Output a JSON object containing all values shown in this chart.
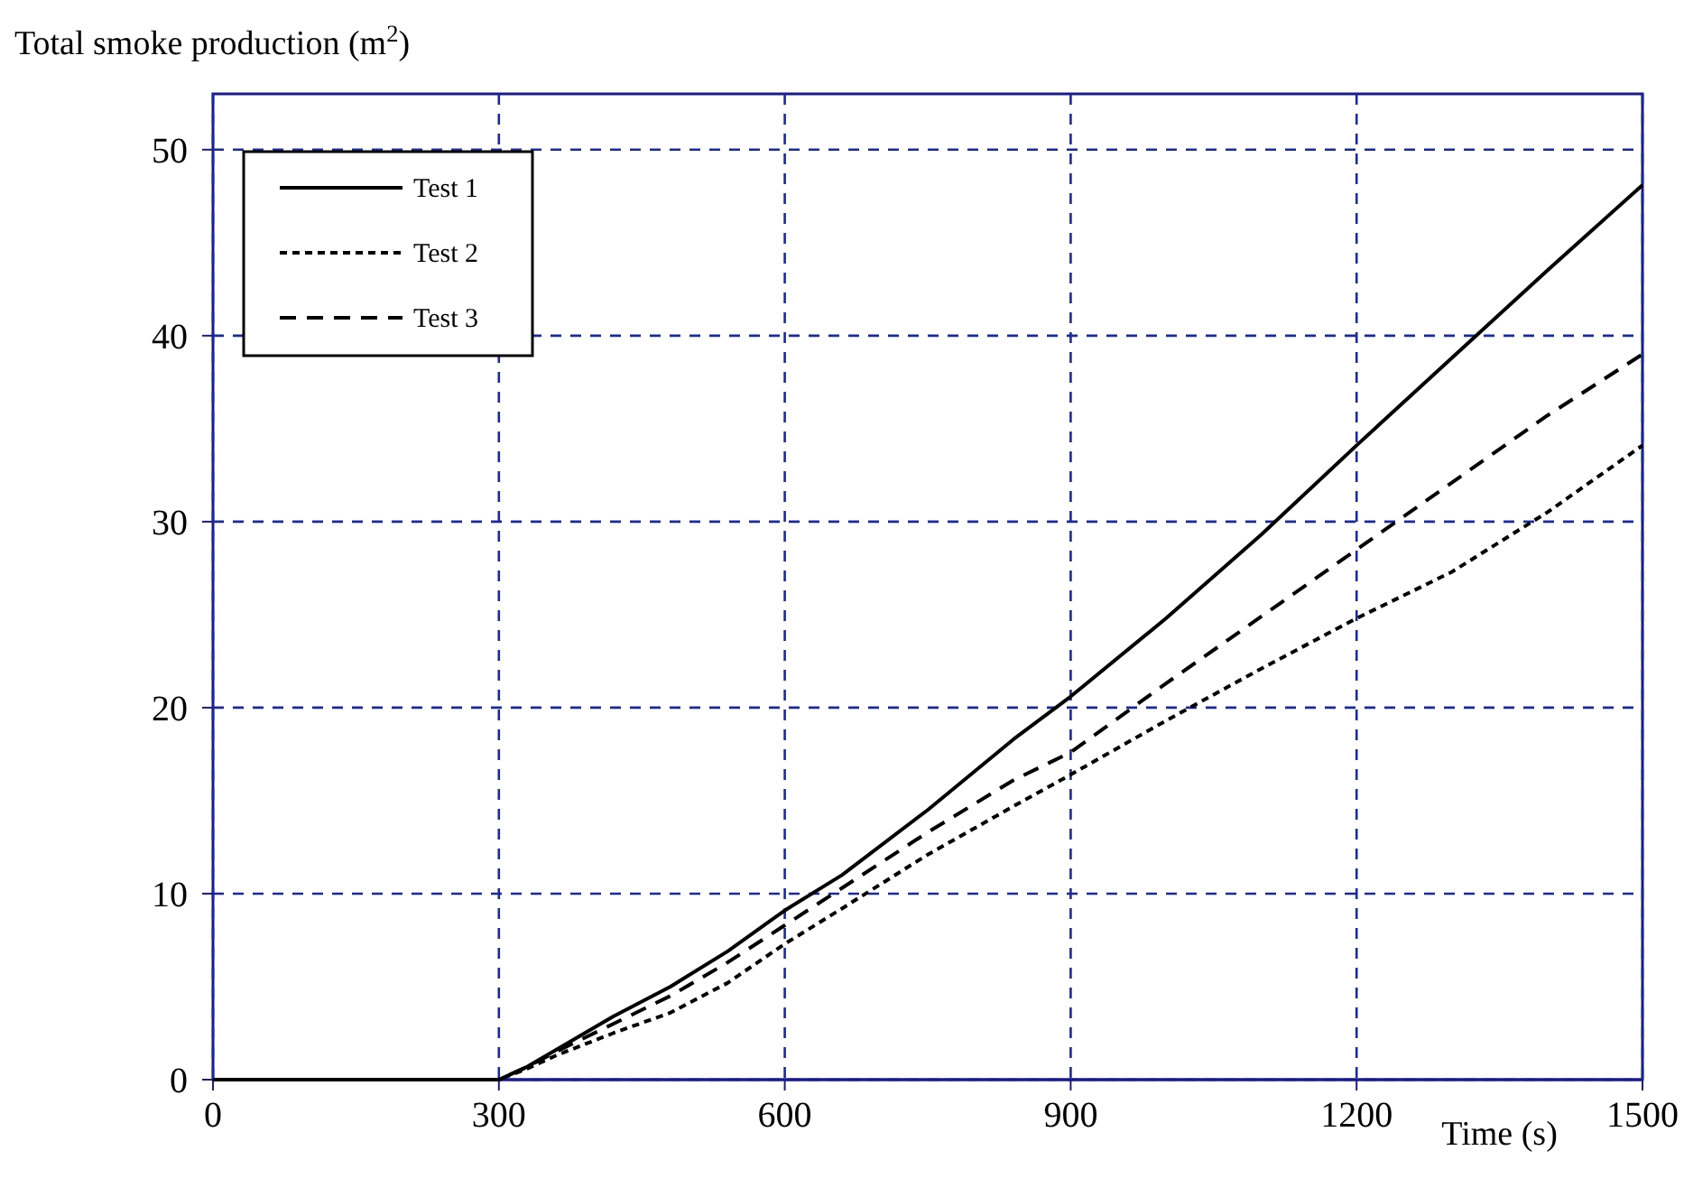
{
  "chart_data": {
    "type": "line",
    "ylabel": "Total smoke production (m$^{2}$)",
    "xlabel": "Time (s)",
    "xlim": [
      0,
      1500
    ],
    "xticks": [
      0,
      300,
      600,
      900,
      1200,
      1500
    ],
    "ylim": [
      0,
      53
    ],
    "yticks": [
      0,
      10,
      20,
      30,
      40,
      50
    ],
    "grid": true,
    "legend": "top left",
    "marker": "none",
    "series": [
      {
        "name": "Test 1",
        "color": "#000000",
        "line_style": "solid",
        "x": [
          0,
          300,
          330,
          360,
          420,
          480,
          540,
          600,
          660,
          750,
          840,
          900,
          1000,
          1100,
          1200,
          1300,
          1400,
          1500
        ],
        "values": [
          0,
          0,
          0.7,
          1.6,
          3.4,
          5,
          6.9,
          9.1,
          11,
          14.5,
          18.3,
          20.6,
          24.8,
          29.3,
          34.1,
          38.8,
          43.5,
          48.1
        ]
      },
      {
        "name": "Test 2",
        "color": "#000000",
        "line_style": "dotted",
        "x": [
          0,
          300,
          330,
          360,
          420,
          480,
          540,
          600,
          660,
          750,
          840,
          900,
          1000,
          1100,
          1200,
          1300,
          1400,
          1500
        ],
        "values": [
          0,
          0,
          0.6,
          1.3,
          2.5,
          3.6,
          5.2,
          7.3,
          9.2,
          12.1,
          14.7,
          16.4,
          19.3,
          22.1,
          24.8,
          27.3,
          30.5,
          34.1
        ]
      },
      {
        "name": "Test 3",
        "color": "#000000",
        "line_style": "dashed",
        "x": [
          0,
          300,
          330,
          360,
          420,
          480,
          540,
          600,
          660,
          750,
          840,
          900,
          1000,
          1100,
          1200,
          1300,
          1400,
          1500
        ],
        "values": [
          0,
          0,
          0.7,
          1.5,
          3,
          4.5,
          6.3,
          8.3,
          10.3,
          13.3,
          16.1,
          17.6,
          21.3,
          24.9,
          28.5,
          32.1,
          35.7,
          39
        ]
      }
    ]
  }
}
